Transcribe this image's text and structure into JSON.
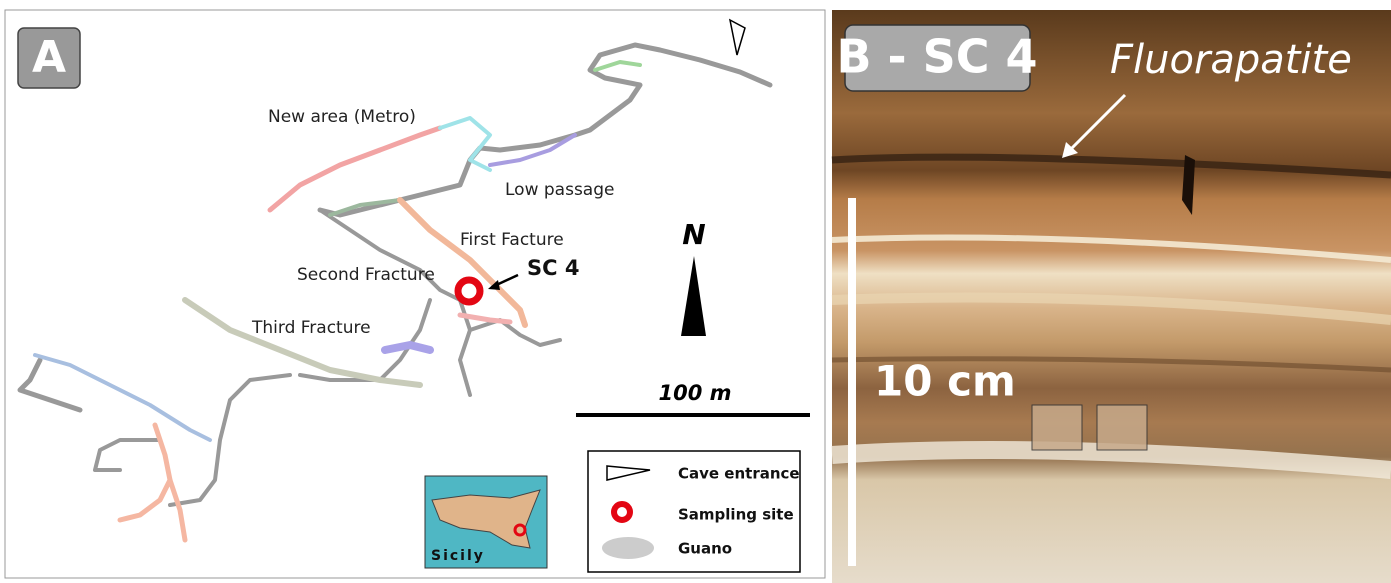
{
  "panel_a": {
    "label": "A",
    "areas": [
      "New area (Metro)",
      "Low passage",
      "First Facture",
      "Second Fracture",
      "Third Fracture"
    ],
    "site": "SC 4",
    "north": "N",
    "scale": "100 m",
    "legend": [
      "Cave entrance",
      "Sampling site",
      "Guano"
    ],
    "inset": "Sicily"
  },
  "panel_b": {
    "label": "B - SC 4",
    "mineral": "Fluorapatite",
    "scale": "10 cm"
  }
}
